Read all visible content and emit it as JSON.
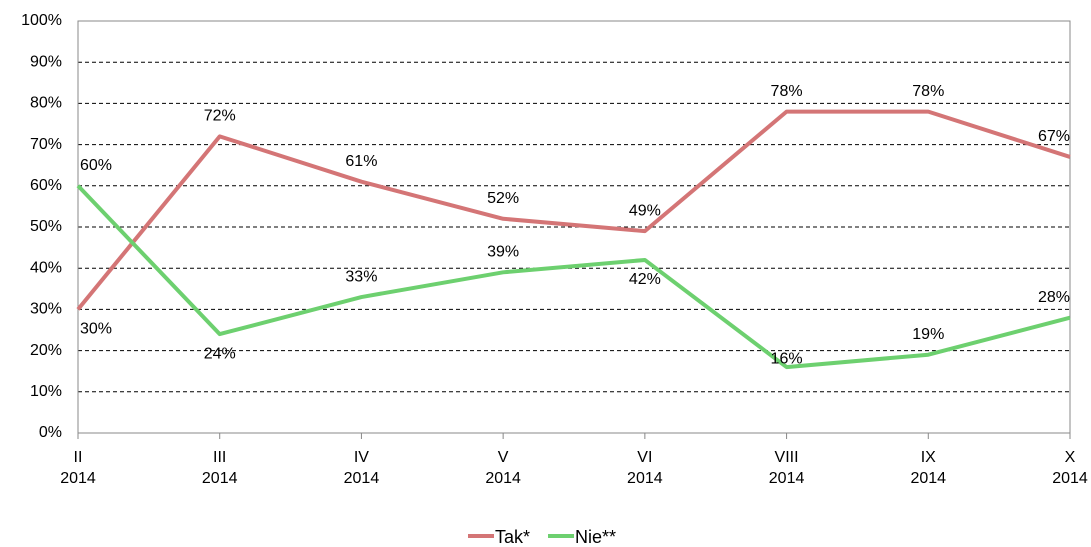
{
  "chart_data": {
    "type": "line",
    "categories": [
      "II\n2014",
      "III\n2014",
      "IV\n2014",
      "V\n2014",
      "VI\n2014",
      "VIII\n2014",
      "IX\n2014",
      "X\n2014"
    ],
    "series": [
      {
        "name": "Tak*",
        "color": "#d47576",
        "values": [
          30,
          72,
          61,
          52,
          49,
          78,
          78,
          67
        ],
        "value_labels": [
          "30%",
          "72%",
          "61%",
          "52%",
          "49%",
          "78%",
          "78%",
          "67%"
        ]
      },
      {
        "name": "Nie**",
        "color": "#6dd06f",
        "values": [
          60,
          24,
          33,
          39,
          42,
          16,
          19,
          28
        ],
        "value_labels": [
          "60%",
          "24%",
          "33%",
          "39%",
          "42%",
          "16%",
          "19%",
          "28%"
        ]
      }
    ],
    "ylim": [
      0,
      100
    ],
    "yticks": [
      {
        "value": 0,
        "label": "0%"
      },
      {
        "value": 10,
        "label": "10%"
      },
      {
        "value": 20,
        "label": "20%"
      },
      {
        "value": 30,
        "label": "30%"
      },
      {
        "value": 40,
        "label": "40%"
      },
      {
        "value": 50,
        "label": "50%"
      },
      {
        "value": 60,
        "label": "60%"
      },
      {
        "value": 70,
        "label": "70%"
      },
      {
        "value": 80,
        "label": "80%"
      },
      {
        "value": 90,
        "label": "90%"
      },
      {
        "value": 100,
        "label": "100%"
      }
    ],
    "grid": true,
    "legend": "bottom"
  }
}
